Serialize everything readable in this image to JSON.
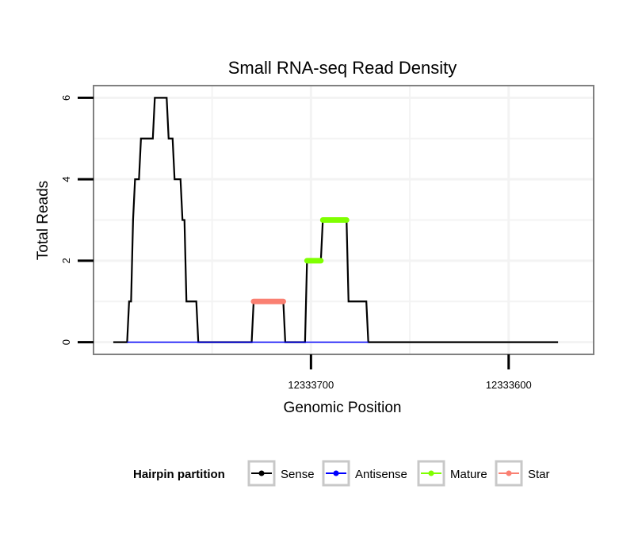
{
  "chart_data": {
    "type": "line",
    "title": "Small RNA-seq Read Density",
    "xlabel": "Genomic Position",
    "ylabel": "Total Reads",
    "x_reversed": true,
    "xlim": [
      12333810,
      12333557
    ],
    "ylim": [
      -0.3,
      6.3
    ],
    "x_ticks": [
      12333700,
      12333600
    ],
    "x_tick_labels": [
      "12333700",
      "12333600"
    ],
    "y_ticks": [
      0,
      2,
      4,
      6
    ],
    "y_tick_labels": [
      "0",
      "2",
      "4",
      "6"
    ],
    "legend": {
      "title": "Hairpin partition",
      "position": "bottom",
      "entries": [
        "Sense",
        "Antisense",
        "Mature",
        "Star"
      ]
    },
    "series": [
      {
        "name": "Sense",
        "color": "#000000",
        "points": [
          [
            12333800,
            0
          ],
          [
            12333793,
            0
          ],
          [
            12333792,
            1
          ],
          [
            12333791,
            1
          ],
          [
            12333790,
            3
          ],
          [
            12333789,
            4
          ],
          [
            12333787,
            4
          ],
          [
            12333786,
            5
          ],
          [
            12333780,
            5
          ],
          [
            12333779,
            6
          ],
          [
            12333773,
            6
          ],
          [
            12333772,
            5
          ],
          [
            12333770,
            5
          ],
          [
            12333769,
            4
          ],
          [
            12333766,
            4
          ],
          [
            12333765,
            3
          ],
          [
            12333764,
            3
          ],
          [
            12333763,
            1
          ],
          [
            12333758,
            1
          ],
          [
            12333757,
            0
          ],
          [
            12333730,
            0
          ],
          [
            12333729,
            1
          ],
          [
            12333714,
            1
          ],
          [
            12333713,
            0
          ],
          [
            12333703,
            0
          ],
          [
            12333702,
            2
          ],
          [
            12333695,
            2
          ],
          [
            12333694,
            3
          ],
          [
            12333682,
            3
          ],
          [
            12333681,
            1
          ],
          [
            12333672,
            1
          ],
          [
            12333671,
            0
          ],
          [
            12333575,
            0
          ]
        ]
      },
      {
        "name": "Antisense",
        "color": "#0000ff",
        "points": [
          [
            12333793,
            0
          ],
          [
            12333757,
            0
          ],
          [
            12333729,
            0
          ],
          [
            12333713,
            0
          ],
          [
            12333702,
            0
          ],
          [
            12333671,
            0
          ]
        ]
      },
      {
        "name": "Mature",
        "color": "#7fff00",
        "segments": [
          {
            "x_start": 12333702,
            "x_end": 12333695,
            "y": 2
          },
          {
            "x_start": 12333694,
            "x_end": 12333682,
            "y": 3
          }
        ]
      },
      {
        "name": "Star",
        "color": "#fa8072",
        "segments": [
          {
            "x_start": 12333729,
            "x_end": 12333714,
            "y": 1
          }
        ]
      }
    ]
  }
}
